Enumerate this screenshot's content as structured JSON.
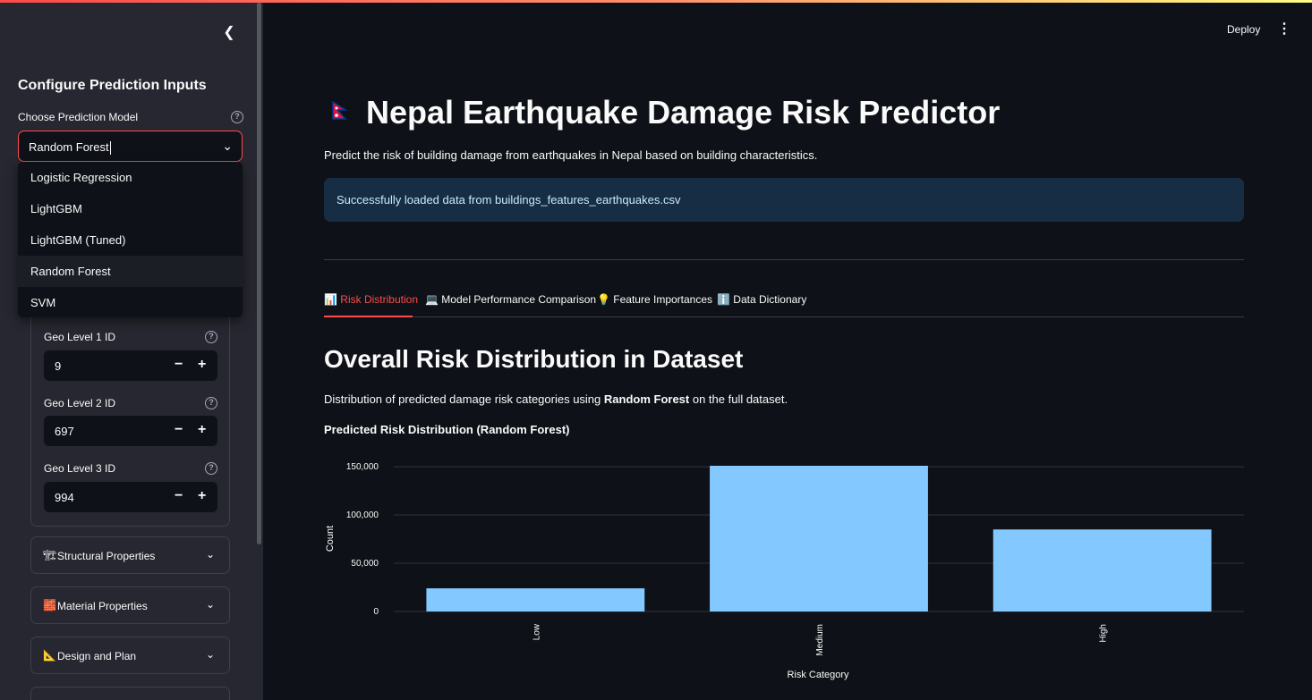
{
  "sidebar": {
    "title": "Configure Prediction Inputs",
    "model_select": {
      "label": "Choose Prediction Model",
      "value": "Random Forest",
      "options": [
        "Logistic Regression",
        "LightGBM",
        "LightGBM (Tuned)",
        "Random Forest",
        "SVM"
      ]
    },
    "geo_fields": [
      {
        "label": "Geo Level 1 ID",
        "value": "9"
      },
      {
        "label": "Geo Level 2 ID",
        "value": "697"
      },
      {
        "label": "Geo Level 3 ID",
        "value": "994"
      }
    ],
    "expanders": [
      {
        "icon": "🏗",
        "label": "Structural Properties"
      },
      {
        "icon": "🧱",
        "label": "Material Properties"
      },
      {
        "icon": "📐",
        "label": "Design and Plan"
      }
    ]
  },
  "header": {
    "deploy_label": "Deploy"
  },
  "main": {
    "title": "Nepal Earthquake Damage Risk Predictor",
    "subtitle": "Predict the risk of building damage from earthquakes in Nepal based on building characteristics.",
    "info_message": "Successfully loaded data from buildings_features_earthquakes.csv",
    "tabs": [
      {
        "icon": "📊",
        "label": "Risk Distribution"
      },
      {
        "icon": "💻",
        "label": "Model Performance Comparison"
      },
      {
        "icon": "💡",
        "label": "Feature Importances"
      },
      {
        "icon": "ℹ️",
        "label": "Data Dictionary"
      }
    ],
    "section_title": "Overall Risk Distribution in Dataset",
    "desc_prefix": "Distribution of predicted damage risk categories using ",
    "desc_model": "Random Forest",
    "desc_suffix": " on the full dataset.",
    "chart_title": "Predicted Risk Distribution (Random Forest)"
  },
  "colors": {
    "accent": "#ff4b4b",
    "bar": "#83c9ff",
    "info_bg": "#172d43"
  },
  "chart_data": {
    "type": "bar",
    "categories": [
      "Low",
      "Medium",
      "High"
    ],
    "values": [
      24000,
      151000,
      85000
    ],
    "xlabel": "Risk Category",
    "ylabel": "Count",
    "yticks": [
      0,
      50000,
      100000,
      150000
    ],
    "ytick_labels": [
      "0",
      "50,000",
      "100,000",
      "150,000"
    ],
    "ylim": [
      0,
      151000
    ]
  }
}
